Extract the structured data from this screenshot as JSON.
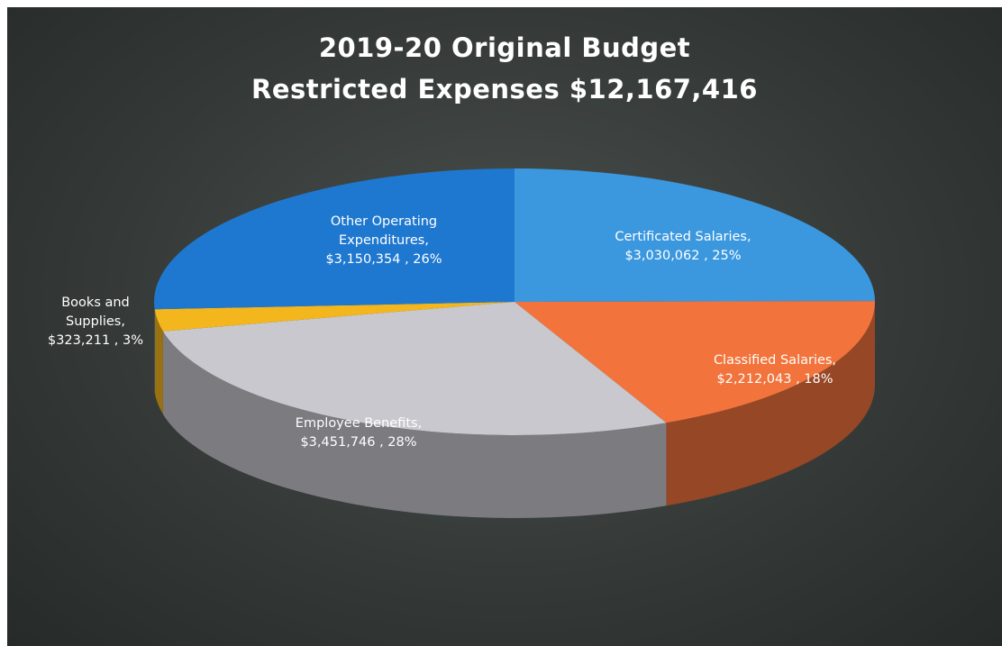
{
  "chart_data": {
    "type": "pie",
    "title": "2019-20 Original Budget",
    "subtitle": "Restricted Expenses $12,167,416",
    "categories": [
      "Certificated Salaries,",
      "Classified Salaries,",
      "Employee Benefits,",
      "Books and Supplies,",
      "Other Operating Expenditures,"
    ],
    "values": [
      3030062,
      2212043,
      3451746,
      323211,
      3150354
    ],
    "value_labels": [
      "$3,030,062 , 25%",
      "$2,212,043 , 18%",
      "$3,451,746 , 28%",
      "$323,211 , 3%",
      "$3,150,354 , 26%"
    ],
    "colors": [
      "#3b98df",
      "#f2733b",
      "#c8c8ce",
      "#f4b61d",
      "#1f78d0"
    ]
  }
}
